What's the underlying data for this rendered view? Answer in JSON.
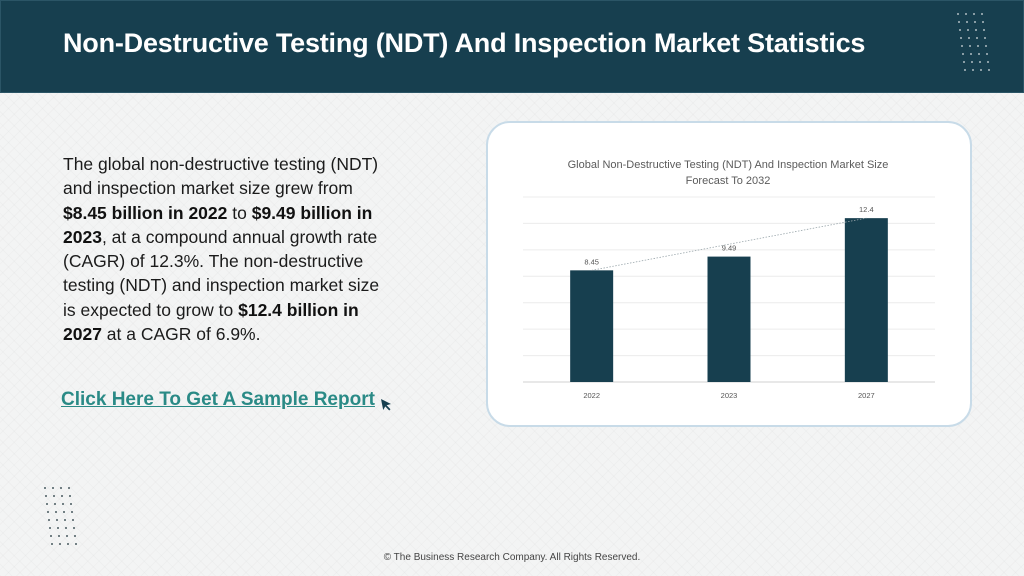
{
  "header": {
    "title": "Non-Destructive Testing (NDT) And Inspection Market Statistics"
  },
  "body": {
    "p1": "The global non-destructive testing (NDT) and inspection market size grew from ",
    "b1": "$8.45 billion in 2022",
    "p2": " to ",
    "b2": "$9.49 billion in 2023",
    "p3": ", at a compound annual growth rate (CAGR) of 12.3%. The non-destructive testing (NDT) and inspection market size is expected to grow to ",
    "b3": "$12.4 billion in 2027",
    "p4": " at a CAGR of 6.9%."
  },
  "cta": {
    "label": "Click Here To Get A Sample Report",
    "icon": "cursor-arrow-icon"
  },
  "footer": {
    "text": "© The Business Research Company. All Rights Reserved."
  },
  "colors": {
    "header_bg": "#173f4f",
    "bar": "#173f4f",
    "link": "#2a8a86"
  },
  "chart_data": {
    "type": "bar",
    "title": "Global Non-Destructive Testing (NDT) And Inspection Market Size Forecast To 2032",
    "categories": [
      "2022",
      "2023",
      "2027"
    ],
    "values": [
      8.45,
      9.49,
      12.4
    ],
    "data_labels": [
      "8.45",
      "9.49",
      "12.4"
    ],
    "ylim": [
      0,
      14
    ],
    "grid": true,
    "trendline": true,
    "xlabel": "",
    "ylabel": ""
  }
}
